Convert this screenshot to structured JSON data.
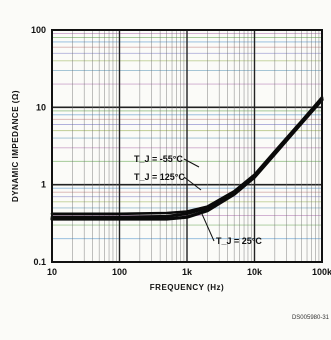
{
  "chart_data": {
    "type": "line",
    "xlabel": "FREQUENCY (Hz)",
    "ylabel": "DYNAMIC IMPEDANCE (Ω)",
    "x_scale": "log",
    "y_scale": "log",
    "xlim": [
      10,
      100000
    ],
    "ylim": [
      0.1,
      100
    ],
    "x_ticks": [
      10,
      100,
      1000,
      10000,
      100000
    ],
    "x_tick_labels": [
      "10",
      "100",
      "1k",
      "10k",
      "100k"
    ],
    "y_ticks": [
      0.1,
      1,
      10,
      100
    ],
    "y_tick_labels": [
      "0.1",
      "1",
      "10",
      "100"
    ],
    "grid": true,
    "series": [
      {
        "name": "T_J = -55°C",
        "x": [
          10,
          100,
          500,
          1000,
          2000,
          5000,
          10000,
          20000,
          50000,
          100000
        ],
        "y": [
          0.38,
          0.38,
          0.39,
          0.42,
          0.5,
          0.8,
          1.3,
          2.6,
          6.5,
          13
        ]
      },
      {
        "name": "T_J = 125°C",
        "x": [
          10,
          100,
          500,
          1000,
          2000,
          5000,
          10000,
          20000,
          50000,
          100000
        ],
        "y": [
          0.42,
          0.42,
          0.43,
          0.45,
          0.52,
          0.82,
          1.35,
          2.7,
          6.7,
          13.5
        ]
      },
      {
        "name": "T_J = 25°C",
        "x": [
          10,
          100,
          500,
          1000,
          2000,
          5000,
          10000,
          20000,
          50000,
          100000
        ],
        "y": [
          0.36,
          0.36,
          0.36,
          0.38,
          0.46,
          0.75,
          1.25,
          2.5,
          6.3,
          12.5
        ]
      }
    ],
    "annotations": [
      {
        "text": "T_J = -55°C"
      },
      {
        "text": "T_J = 125°C"
      },
      {
        "text": "T_J = 25°C"
      }
    ],
    "figure_id": "DS005980-31"
  }
}
